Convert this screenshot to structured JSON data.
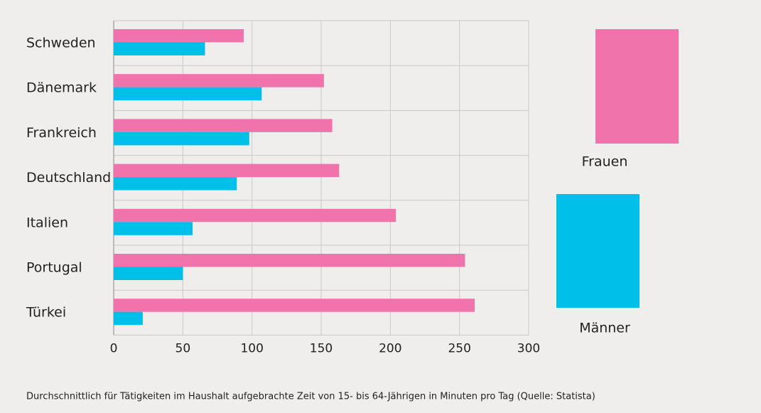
{
  "chart_data": {
    "type": "hbar",
    "caption": "Durchschnittlich für Tätigkeiten im Haushalt aufgebrachte Zeit von 15- bis 64-Jährigen in Minuten pro Tag (Quelle: Statista)",
    "categories": [
      "Schweden",
      "Dänemark",
      "Frankreich",
      "Deutschland",
      "Italien",
      "Portugal",
      "Türkei"
    ],
    "series": [
      {
        "name": "Frauen",
        "color": "#f073ac",
        "values": [
          94,
          152,
          158,
          163,
          204,
          254,
          261
        ]
      },
      {
        "name": "Männer",
        "color": "#00bfe8",
        "values": [
          66,
          107,
          98,
          89,
          57,
          50,
          21
        ]
      }
    ],
    "xlim": [
      0,
      300
    ],
    "xticks": [
      0,
      50,
      100,
      150,
      200,
      250,
      300
    ],
    "grid": true
  }
}
